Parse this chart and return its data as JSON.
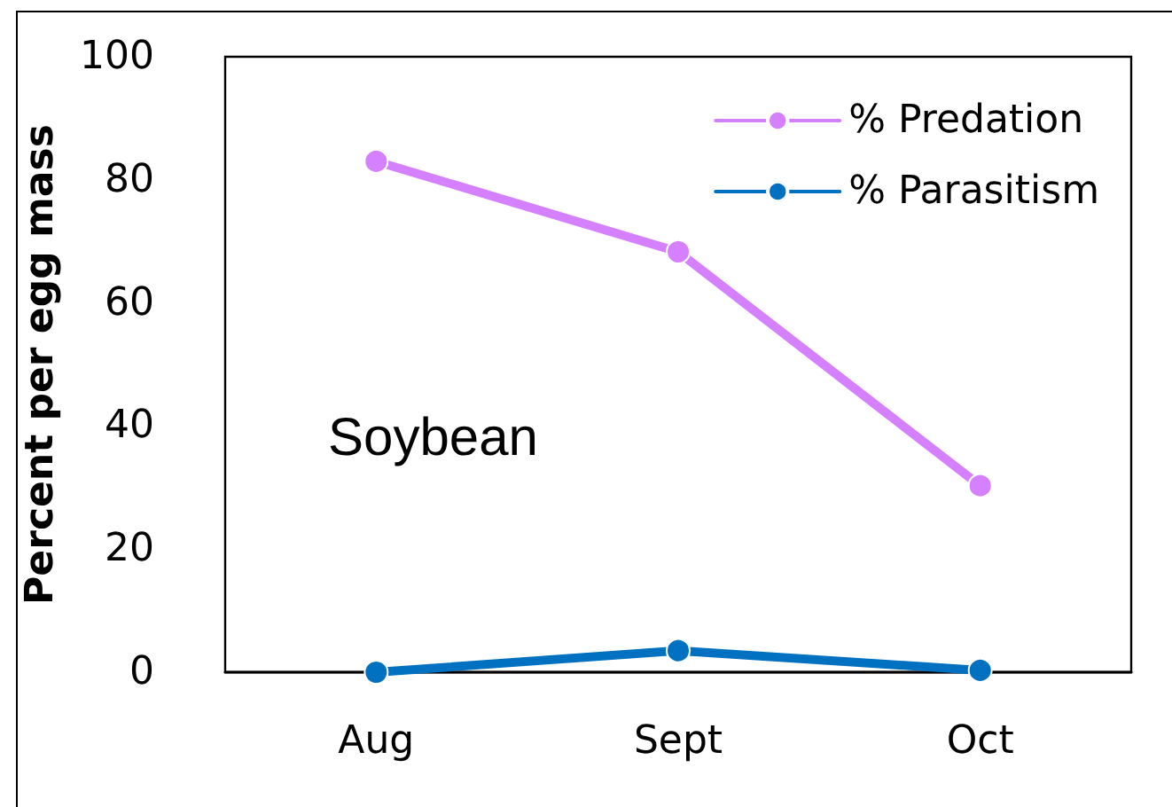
{
  "chart_data": {
    "type": "line",
    "ylabel": "Percent per egg mass",
    "categories": [
      "Aug",
      "Sept",
      "Oct"
    ],
    "series": [
      {
        "name": "% Predation",
        "color": "#d580ff",
        "values": [
          83,
          68.3,
          30.3
        ]
      },
      {
        "name": "% Parasitism",
        "color": "#0070c0",
        "values": [
          0,
          3.5,
          0.3
        ]
      }
    ],
    "ylim": [
      0,
      100
    ],
    "yticks": [
      0,
      20,
      40,
      60,
      80,
      100
    ],
    "grid": false,
    "legend": "top right",
    "marker": "circle",
    "line_style": "solid",
    "annotations": [
      "Soybean"
    ]
  }
}
